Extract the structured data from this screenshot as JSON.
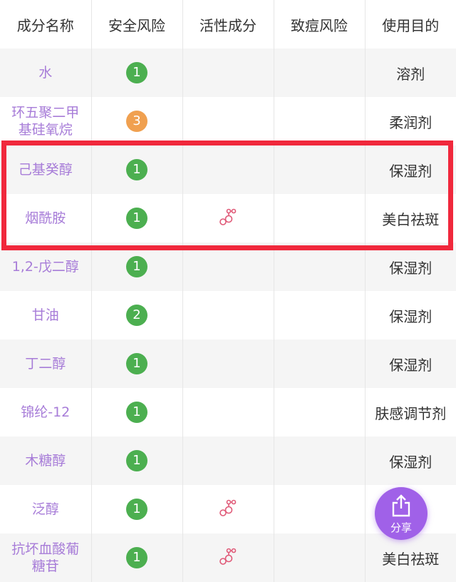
{
  "headers": [
    "成分名称",
    "安全风险",
    "活性成分",
    "致痘风险",
    "使用目的"
  ],
  "rows": [
    {
      "name": "水",
      "risk": "1",
      "risk_color": "#4caf50",
      "active": false,
      "acne": "",
      "use": "溶剂"
    },
    {
      "name": "环五聚二甲基硅氧烷",
      "risk": "3",
      "risk_color": "#f0a050",
      "active": false,
      "acne": "",
      "use": "柔润剂"
    },
    {
      "name": "己基癸醇",
      "risk": "1",
      "risk_color": "#4caf50",
      "active": false,
      "acne": "",
      "use": "保湿剂"
    },
    {
      "name": "烟酰胺",
      "risk": "1",
      "risk_color": "#4caf50",
      "active": true,
      "acne": "",
      "use": "美白祛斑"
    },
    {
      "name": "1,2-戊二醇",
      "risk": "1",
      "risk_color": "#4caf50",
      "active": false,
      "acne": "",
      "use": "保湿剂"
    },
    {
      "name": "甘油",
      "risk": "2",
      "risk_color": "#4caf50",
      "active": false,
      "acne": "",
      "use": "保湿剂"
    },
    {
      "name": "丁二醇",
      "risk": "1",
      "risk_color": "#4caf50",
      "active": false,
      "acne": "",
      "use": "保湿剂"
    },
    {
      "name": "锦纶-12",
      "risk": "1",
      "risk_color": "#4caf50",
      "active": false,
      "acne": "",
      "use": "肤感调节剂"
    },
    {
      "name": "木糖醇",
      "risk": "1",
      "risk_color": "#4caf50",
      "active": false,
      "acne": "",
      "use": "保湿剂"
    },
    {
      "name": "泛醇",
      "risk": "1",
      "risk_color": "#4caf50",
      "active": true,
      "acne": "",
      "use": ""
    },
    {
      "name": "抗坏血酸葡糖苷",
      "risk": "1",
      "risk_color": "#4caf50",
      "active": true,
      "acne": "",
      "use": "美白祛斑"
    }
  ],
  "share": {
    "label": "分享",
    "icon": "share-icon",
    "color": "#a061e8"
  },
  "highlight_color": "#f0283c"
}
